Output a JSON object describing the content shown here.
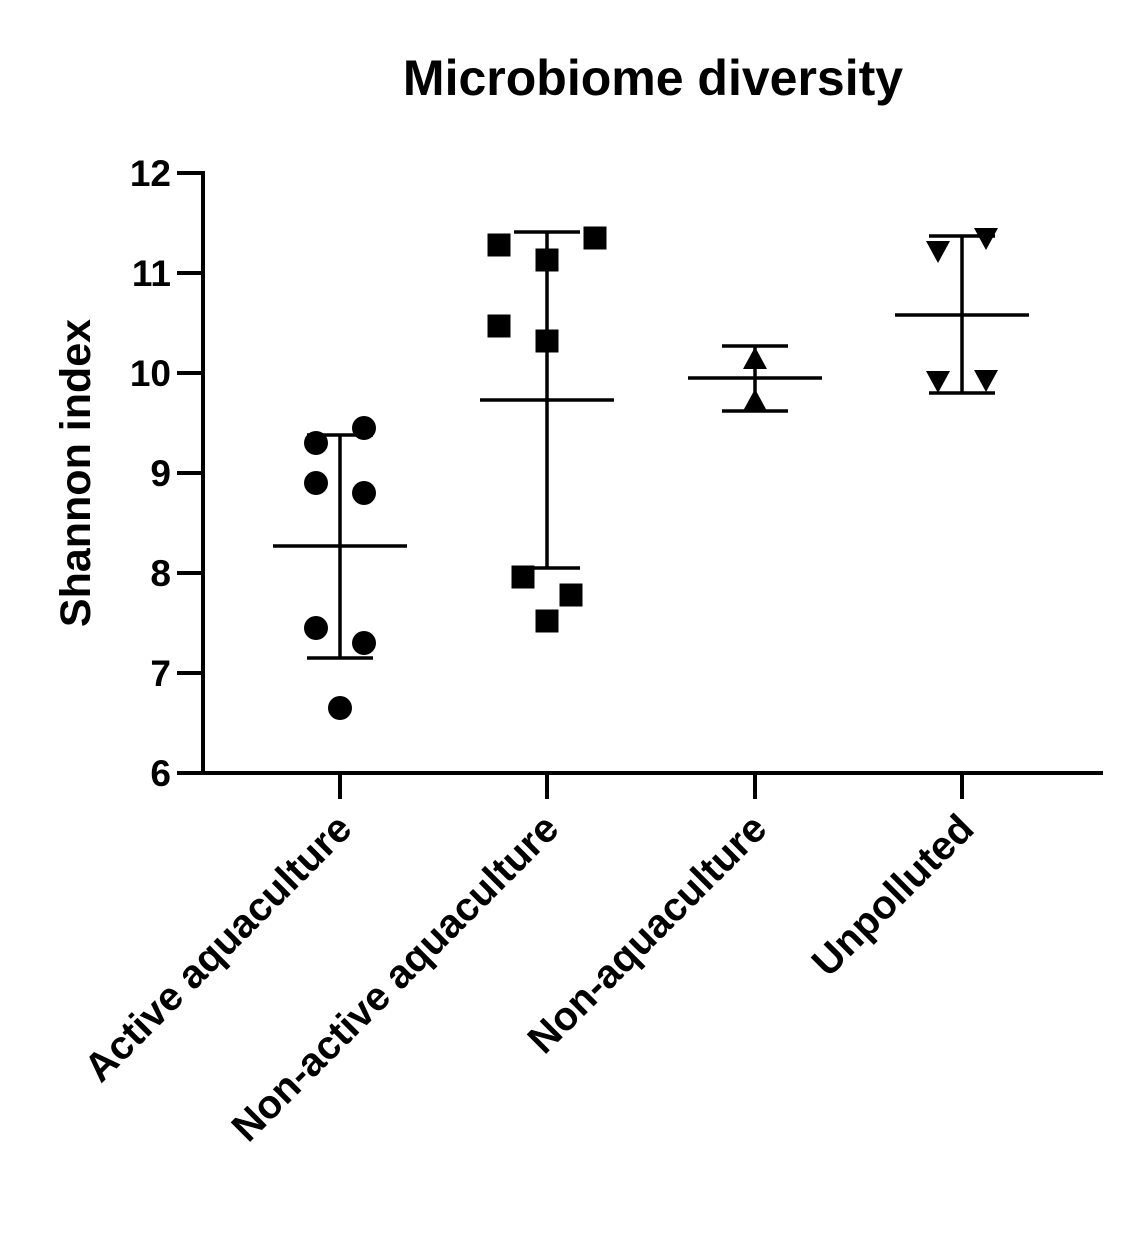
{
  "chart_data": {
    "type": "scatter",
    "title": "Microbiome diversity",
    "xlabel": "",
    "ylabel": "Shannon index",
    "ylim": [
      6,
      12
    ],
    "yticks": [
      6,
      7,
      8,
      9,
      10,
      11,
      12
    ],
    "grid": false,
    "categories": [
      "Active aquaculture",
      "Non-active aquaculture",
      "Non-aquaculture",
      "Unpolluted"
    ],
    "groups": [
      {
        "name": "Active aquaculture",
        "marker": "circle",
        "mean": 8.27,
        "sd_low": 7.15,
        "sd_high": 9.38,
        "points": [
          {
            "jitter": -1,
            "value": 9.3
          },
          {
            "jitter": 1,
            "value": 9.45
          },
          {
            "jitter": -1,
            "value": 8.9
          },
          {
            "jitter": 1,
            "value": 8.8
          },
          {
            "jitter": -1,
            "value": 7.45
          },
          {
            "jitter": 1,
            "value": 7.3
          },
          {
            "jitter": 0,
            "value": 6.65
          }
        ]
      },
      {
        "name": "Non-active aquaculture",
        "marker": "square",
        "mean": 9.73,
        "sd_low": 8.05,
        "sd_high": 11.41,
        "points": [
          {
            "jitter": -2,
            "value": 11.28
          },
          {
            "jitter": 2,
            "value": 11.35
          },
          {
            "jitter": 0,
            "value": 11.13
          },
          {
            "jitter": -2,
            "value": 10.47
          },
          {
            "jitter": 0,
            "value": 10.32
          },
          {
            "jitter": -1,
            "value": 7.96
          },
          {
            "jitter": 1,
            "value": 7.78
          },
          {
            "jitter": 0,
            "value": 7.52
          }
        ]
      },
      {
        "name": "Non-aquaculture",
        "marker": "triangle-up",
        "mean": 9.95,
        "sd_low": 9.62,
        "sd_high": 10.27,
        "points": [
          {
            "jitter": 0,
            "value": 10.14
          },
          {
            "jitter": 0,
            "value": 9.72
          }
        ]
      },
      {
        "name": "Unpolluted",
        "marker": "triangle-down",
        "mean": 10.58,
        "sd_low": 9.8,
        "sd_high": 11.37,
        "points": [
          {
            "jitter": 1,
            "value": 11.35
          },
          {
            "jitter": -1,
            "value": 11.22
          },
          {
            "jitter": -1,
            "value": 9.92
          },
          {
            "jitter": 1,
            "value": 9.93
          }
        ]
      }
    ]
  }
}
